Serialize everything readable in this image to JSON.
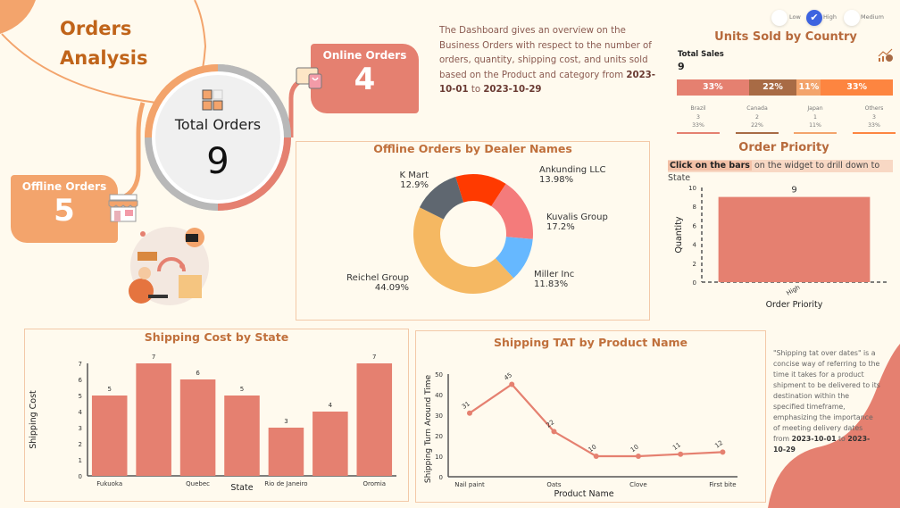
{
  "header": {
    "title_line1": "Orders",
    "title_line2": "Analysis",
    "description": "The Dashboard gives an overview on the Business Orders with respect to the number of orders, quantity, shipping cost, and units sold based on the Product and category from",
    "date_from": "2023-10-01",
    "date_connector": "to",
    "date_to": "2023-10-29"
  },
  "kpis": {
    "total_label": "Total Orders",
    "total_value": "9",
    "online_label": "Online Orders",
    "online_value": "4",
    "offline_label": "Offline Orders",
    "offline_value": "5",
    "icons": [
      "boxes-icon",
      "shopping-bag-icon",
      "store-icon",
      "logistics-illustration"
    ]
  },
  "priority_filter": {
    "options": [
      {
        "label": "Low",
        "selected": false
      },
      {
        "label": "High",
        "selected": true
      },
      {
        "label": "Medium",
        "selected": false
      }
    ]
  },
  "units_sold": {
    "title": "Units Sold by Country",
    "total_label": "Total Sales",
    "total_value": "9",
    "icon": "sales-chart-icon",
    "segments": [
      {
        "country": "Brazil",
        "units": "3",
        "pct": "33%",
        "color": "#e58070",
        "share": 33
      },
      {
        "country": "Canada",
        "units": "2",
        "pct": "22%",
        "color": "#a86b45",
        "share": 22
      },
      {
        "country": "Japan",
        "units": "1",
        "pct": "11%",
        "color": "#f3a46c",
        "share": 11
      },
      {
        "country": "Others",
        "units": "3",
        "pct": "33%",
        "color": "#fd8540",
        "share": 33
      }
    ]
  },
  "order_priority": {
    "hint_bold": "Click on the bars",
    "hint_rest": "on the widget to drill down to State"
  },
  "tat_note": {
    "text": "\"Shipping tat over dates\" is a concise way of referring to the time it takes for a product shipment to be delivered to its destination within the specified timeframe, emphasizing the importance of meeting delivery dates from",
    "date_from": "2023-10-01",
    "date_connector": "to",
    "date_to": "2023-10-29"
  },
  "chart_data": [
    {
      "id": "dealer_donut",
      "type": "pie",
      "title": "Offline Orders by Dealer Names",
      "slices": [
        {
          "label": "Ankunding LLC",
          "pct_label": "13.98%",
          "value": 13.98,
          "color": "#ff3a00"
        },
        {
          "label": "Kuvalis Group",
          "pct_label": "17.2%",
          "value": 17.2,
          "color": "#f47b7b"
        },
        {
          "label": "Miller Inc",
          "pct_label": "11.83%",
          "value": 11.83,
          "color": "#66b8ff"
        },
        {
          "label": "Reichel Group",
          "pct_label": "44.09%",
          "value": 44.09,
          "color": "#f5b862"
        },
        {
          "label": "K Mart",
          "pct_label": "12.9%",
          "value": 12.9,
          "color": "#5f6770"
        }
      ]
    },
    {
      "id": "order_priority",
      "type": "bar",
      "title": "Order Priority",
      "categories": [
        "High"
      ],
      "values": [
        9
      ],
      "value_labels": [
        "9"
      ],
      "xlabel": "Order Priority",
      "ylabel": "Quantity",
      "ylim": [
        0,
        10
      ],
      "yticks": [
        "0",
        "2",
        "4",
        "6",
        "8",
        "10"
      ]
    },
    {
      "id": "shipping_cost",
      "type": "bar",
      "title": "Shipping Cost by State",
      "categories": [
        "Fukuoka",
        "",
        "Quebec",
        "",
        "Rio de Janeiro",
        "",
        "Oromia"
      ],
      "values": [
        5,
        7,
        6,
        5,
        3,
        4,
        7
      ],
      "value_labels": [
        "5",
        "7",
        "6",
        "5",
        "3",
        "4",
        "7"
      ],
      "xlabel": "State",
      "ylabel": "Shipping Cost",
      "ylim": [
        0,
        7
      ],
      "yticks": [
        "0",
        "1",
        "2",
        "3",
        "4",
        "5",
        "6",
        "7"
      ]
    },
    {
      "id": "shipping_tat",
      "type": "line",
      "title": "Shipping TAT by Product Name",
      "categories": [
        "Nail paint",
        "",
        "Oats",
        "",
        "Clove",
        "",
        "First bite"
      ],
      "values": [
        31,
        45,
        22,
        10,
        10,
        11,
        12
      ],
      "value_labels": [
        "31",
        "45",
        "22",
        "10",
        "10",
        "11",
        "12"
      ],
      "xlabel": "Product Name",
      "ylabel": "Shipping Turn Around Time",
      "ylim": [
        0,
        50
      ],
      "yticks": [
        "0",
        "10",
        "20",
        "30",
        "40",
        "50"
      ]
    }
  ]
}
